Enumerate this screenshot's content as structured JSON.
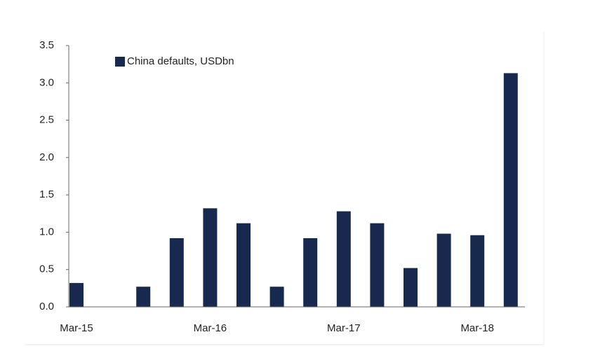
{
  "chart_data": {
    "type": "bar",
    "categories": [
      "Mar-15",
      null,
      null,
      null,
      "Mar-16",
      null,
      null,
      null,
      "Mar-17",
      null,
      null,
      null,
      "Mar-18",
      null
    ],
    "series": [
      {
        "name": "China defaults, USDbn",
        "color": "#18294f",
        "values": [
          0.32,
          0,
          0.27,
          0.92,
          1.32,
          1.12,
          0.27,
          0.92,
          1.28,
          1.12,
          0.52,
          0.98,
          0.96,
          3.13
        ]
      }
    ],
    "ylim": [
      0,
      3.5
    ],
    "yticks": [
      {
        "value": 0,
        "label": "0.0"
      },
      0.5,
      {
        "value": 1,
        "label": "1.0"
      },
      1.5,
      {
        "value": 2,
        "label": "2.0"
      },
      2.5,
      {
        "value": 3,
        "label": "3.0"
      },
      3.5
    ],
    "grid": false,
    "legend": "top-left"
  }
}
